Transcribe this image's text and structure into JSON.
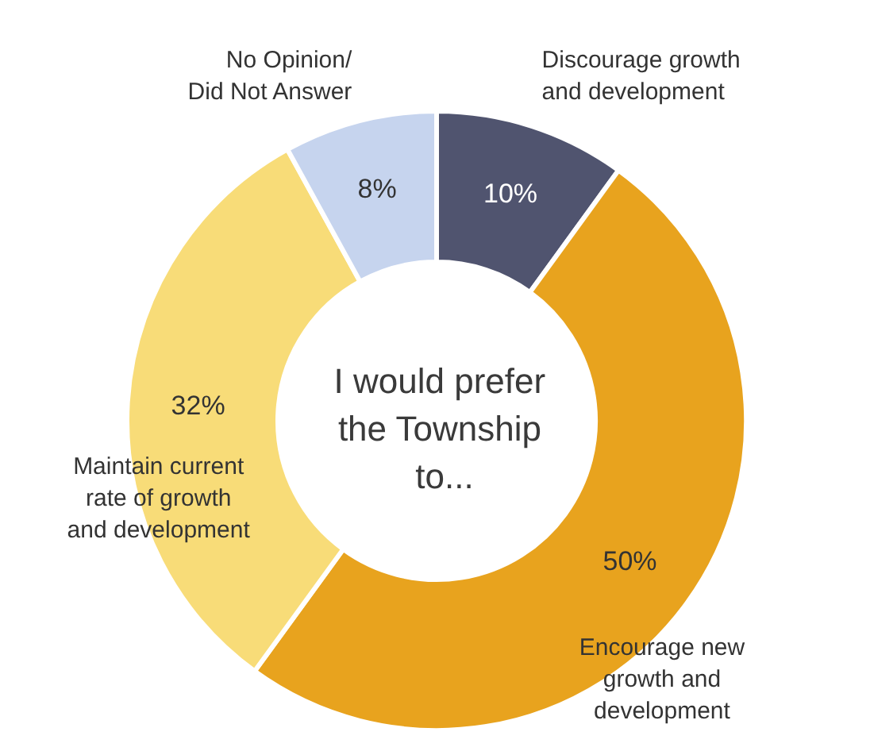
{
  "chart_data": {
    "type": "donut",
    "title": "I would prefer the Township to...",
    "categories": [
      "Discourage growth and development",
      "Encourage new growth and development",
      "Maintain current rate of growth and development",
      "No Opinion/ Did Not Answer"
    ],
    "values": [
      10,
      50,
      32,
      8
    ],
    "value_labels": [
      "10%",
      "50%",
      "32%",
      "8%"
    ],
    "colors": [
      "#50546f",
      "#e8a31e",
      "#f8dc78",
      "#c6d4ee"
    ]
  }
}
